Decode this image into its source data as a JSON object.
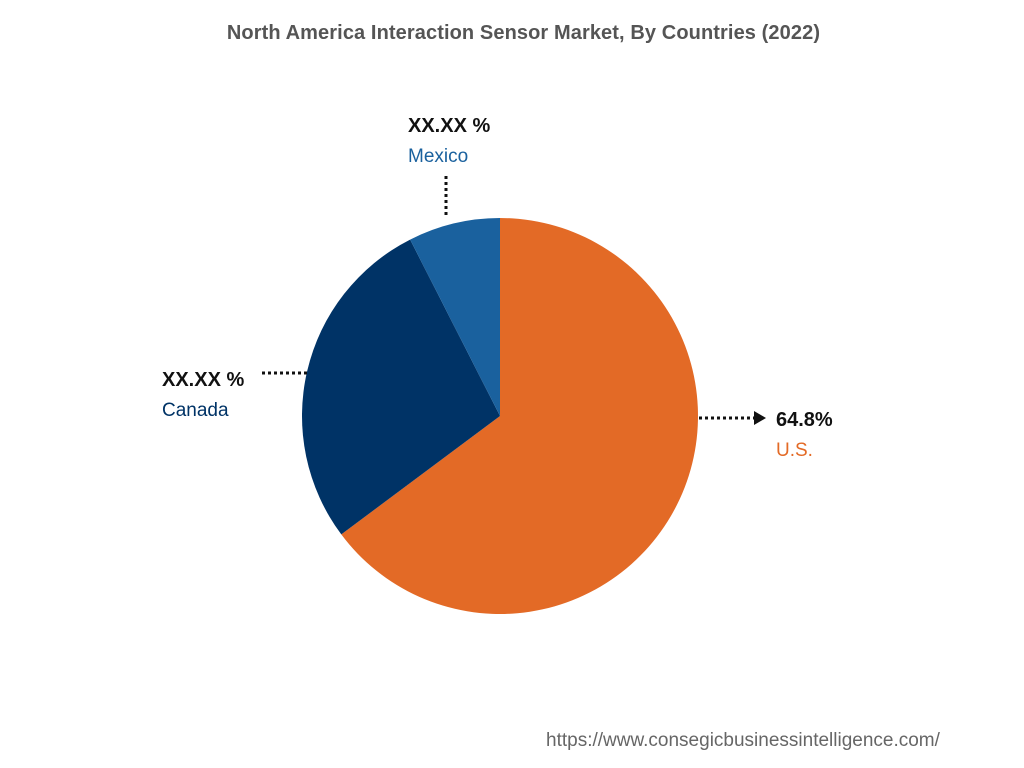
{
  "chart_data": {
    "type": "pie",
    "title": "North America Interaction Sensor Market, By Countries (2022)",
    "slices": [
      {
        "name": "U.S.",
        "value": 64.8,
        "display": "64.8%",
        "color": "#E36A26"
      },
      {
        "name": "Canada",
        "value": 27.7,
        "display": "XX.XX %",
        "color": "#003366"
      },
      {
        "name": "Mexico",
        "value": 7.5,
        "display": "XX.XX %",
        "color": "#1A619E"
      }
    ],
    "legend": "none"
  },
  "footer": {
    "source": "https://www.consegicbusinessintelligence.com/"
  }
}
